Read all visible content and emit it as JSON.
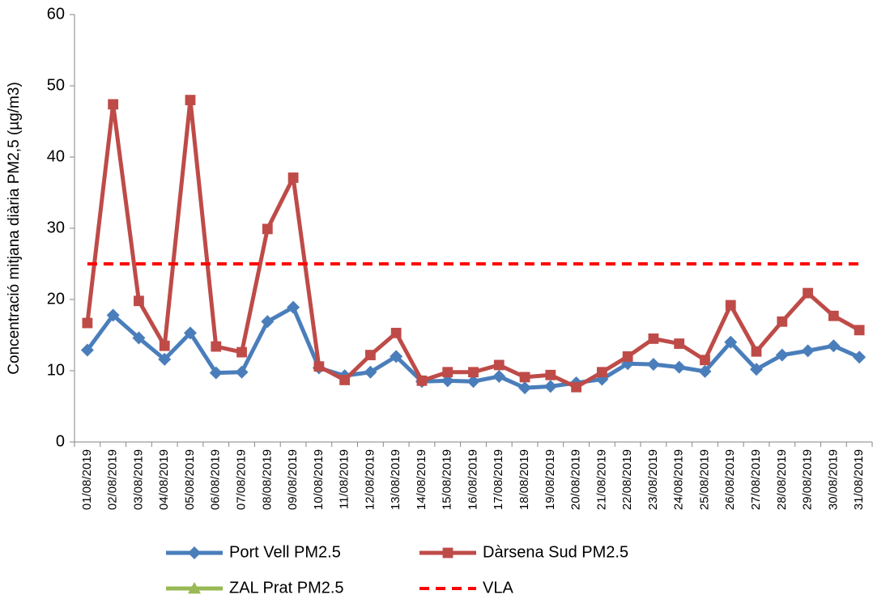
{
  "chart_data": {
    "type": "line",
    "y_label": "Concentració mitjana diària PM2,5 (µg/m3)",
    "categories": [
      "01/08/2019",
      "02/08/2019",
      "03/08/2019",
      "04/08/2019",
      "05/08/2019",
      "06/08/2019",
      "07/08/2019",
      "08/08/2019",
      "09/08/2019",
      "10/08/2019",
      "11/08/2019",
      "12/08/2019",
      "13/08/2019",
      "14/08/2019",
      "15/08/2019",
      "16/08/2019",
      "17/08/2019",
      "18/08/2019",
      "19/08/2019",
      "20/08/2019",
      "21/08/2019",
      "22/08/2019",
      "23/08/2019",
      "24/08/2019",
      "25/08/2019",
      "26/08/2019",
      "27/08/2019",
      "28/08/2019",
      "29/08/2019",
      "30/08/2019",
      "31/08/2019"
    ],
    "series": [
      {
        "name": "Port Vell PM2.5",
        "color": "#4a7ebb",
        "marker": "diamond",
        "values": [
          12.9,
          17.8,
          14.6,
          11.6,
          15.3,
          9.7,
          9.8,
          16.9,
          18.9,
          10.4,
          9.3,
          9.8,
          12.0,
          8.5,
          8.6,
          8.5,
          9.2,
          7.6,
          7.8,
          8.3,
          8.8,
          11.0,
          10.9,
          10.5,
          9.9,
          14.0,
          10.2,
          12.2,
          12.8,
          13.5,
          11.9
        ]
      },
      {
        "name": "Dàrsena Sud PM2.5",
        "color": "#be4b48",
        "marker": "square",
        "values": [
          16.7,
          47.4,
          19.8,
          13.5,
          48.0,
          13.4,
          12.6,
          29.9,
          37.1,
          10.6,
          8.7,
          12.2,
          15.3,
          8.6,
          9.8,
          9.8,
          10.8,
          9.1,
          9.4,
          7.7,
          9.8,
          12.0,
          14.5,
          13.8,
          11.5,
          19.2,
          12.7,
          16.9,
          20.9,
          17.7,
          15.7
        ]
      },
      {
        "name": "ZAL Prat PM2.5",
        "color": "#98b954",
        "marker": "triangle",
        "values": [
          null,
          null,
          null,
          null,
          null,
          null,
          null,
          null,
          null,
          null,
          null,
          null,
          null,
          null,
          null,
          null,
          null,
          null,
          null,
          null,
          null,
          null,
          null,
          null,
          null,
          null,
          null,
          null,
          null,
          null,
          null
        ]
      },
      {
        "name": "VLA",
        "color": "#ff0000",
        "dashed": true,
        "values": [
          25,
          25,
          25,
          25,
          25,
          25,
          25,
          25,
          25,
          25,
          25,
          25,
          25,
          25,
          25,
          25,
          25,
          25,
          25,
          25,
          25,
          25,
          25,
          25,
          25,
          25,
          25,
          25,
          25,
          25,
          25
        ]
      }
    ],
    "ylim": [
      0,
      60
    ],
    "yticks": [
      0,
      10,
      20,
      30,
      40,
      50,
      60
    ]
  }
}
